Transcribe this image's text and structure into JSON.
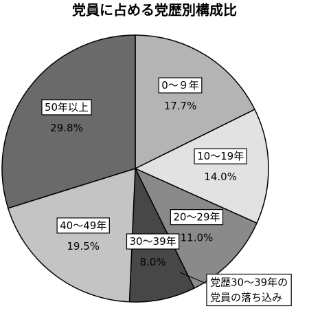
{
  "chart_data": {
    "type": "pie",
    "title": "党員に占める党歴別構成比",
    "categories": [
      "0～９年",
      "10～19年",
      "20～29年",
      "30～39年",
      "40～49年",
      "50年以上"
    ],
    "values": [
      17.7,
      14.0,
      11.0,
      8.0,
      19.5,
      29.8
    ],
    "value_labels": [
      "17.7%",
      "14.0%",
      "11.0%",
      "8.0%",
      "19.5%",
      "29.8%"
    ],
    "colors": [
      "#b4b4b4",
      "#e2e2e2",
      "#8a8a8a",
      "#474747",
      "#c4c4c4",
      "#6a6a6a"
    ],
    "annotation": [
      "党歴30～39年の",
      "党員の落ち込み"
    ]
  }
}
